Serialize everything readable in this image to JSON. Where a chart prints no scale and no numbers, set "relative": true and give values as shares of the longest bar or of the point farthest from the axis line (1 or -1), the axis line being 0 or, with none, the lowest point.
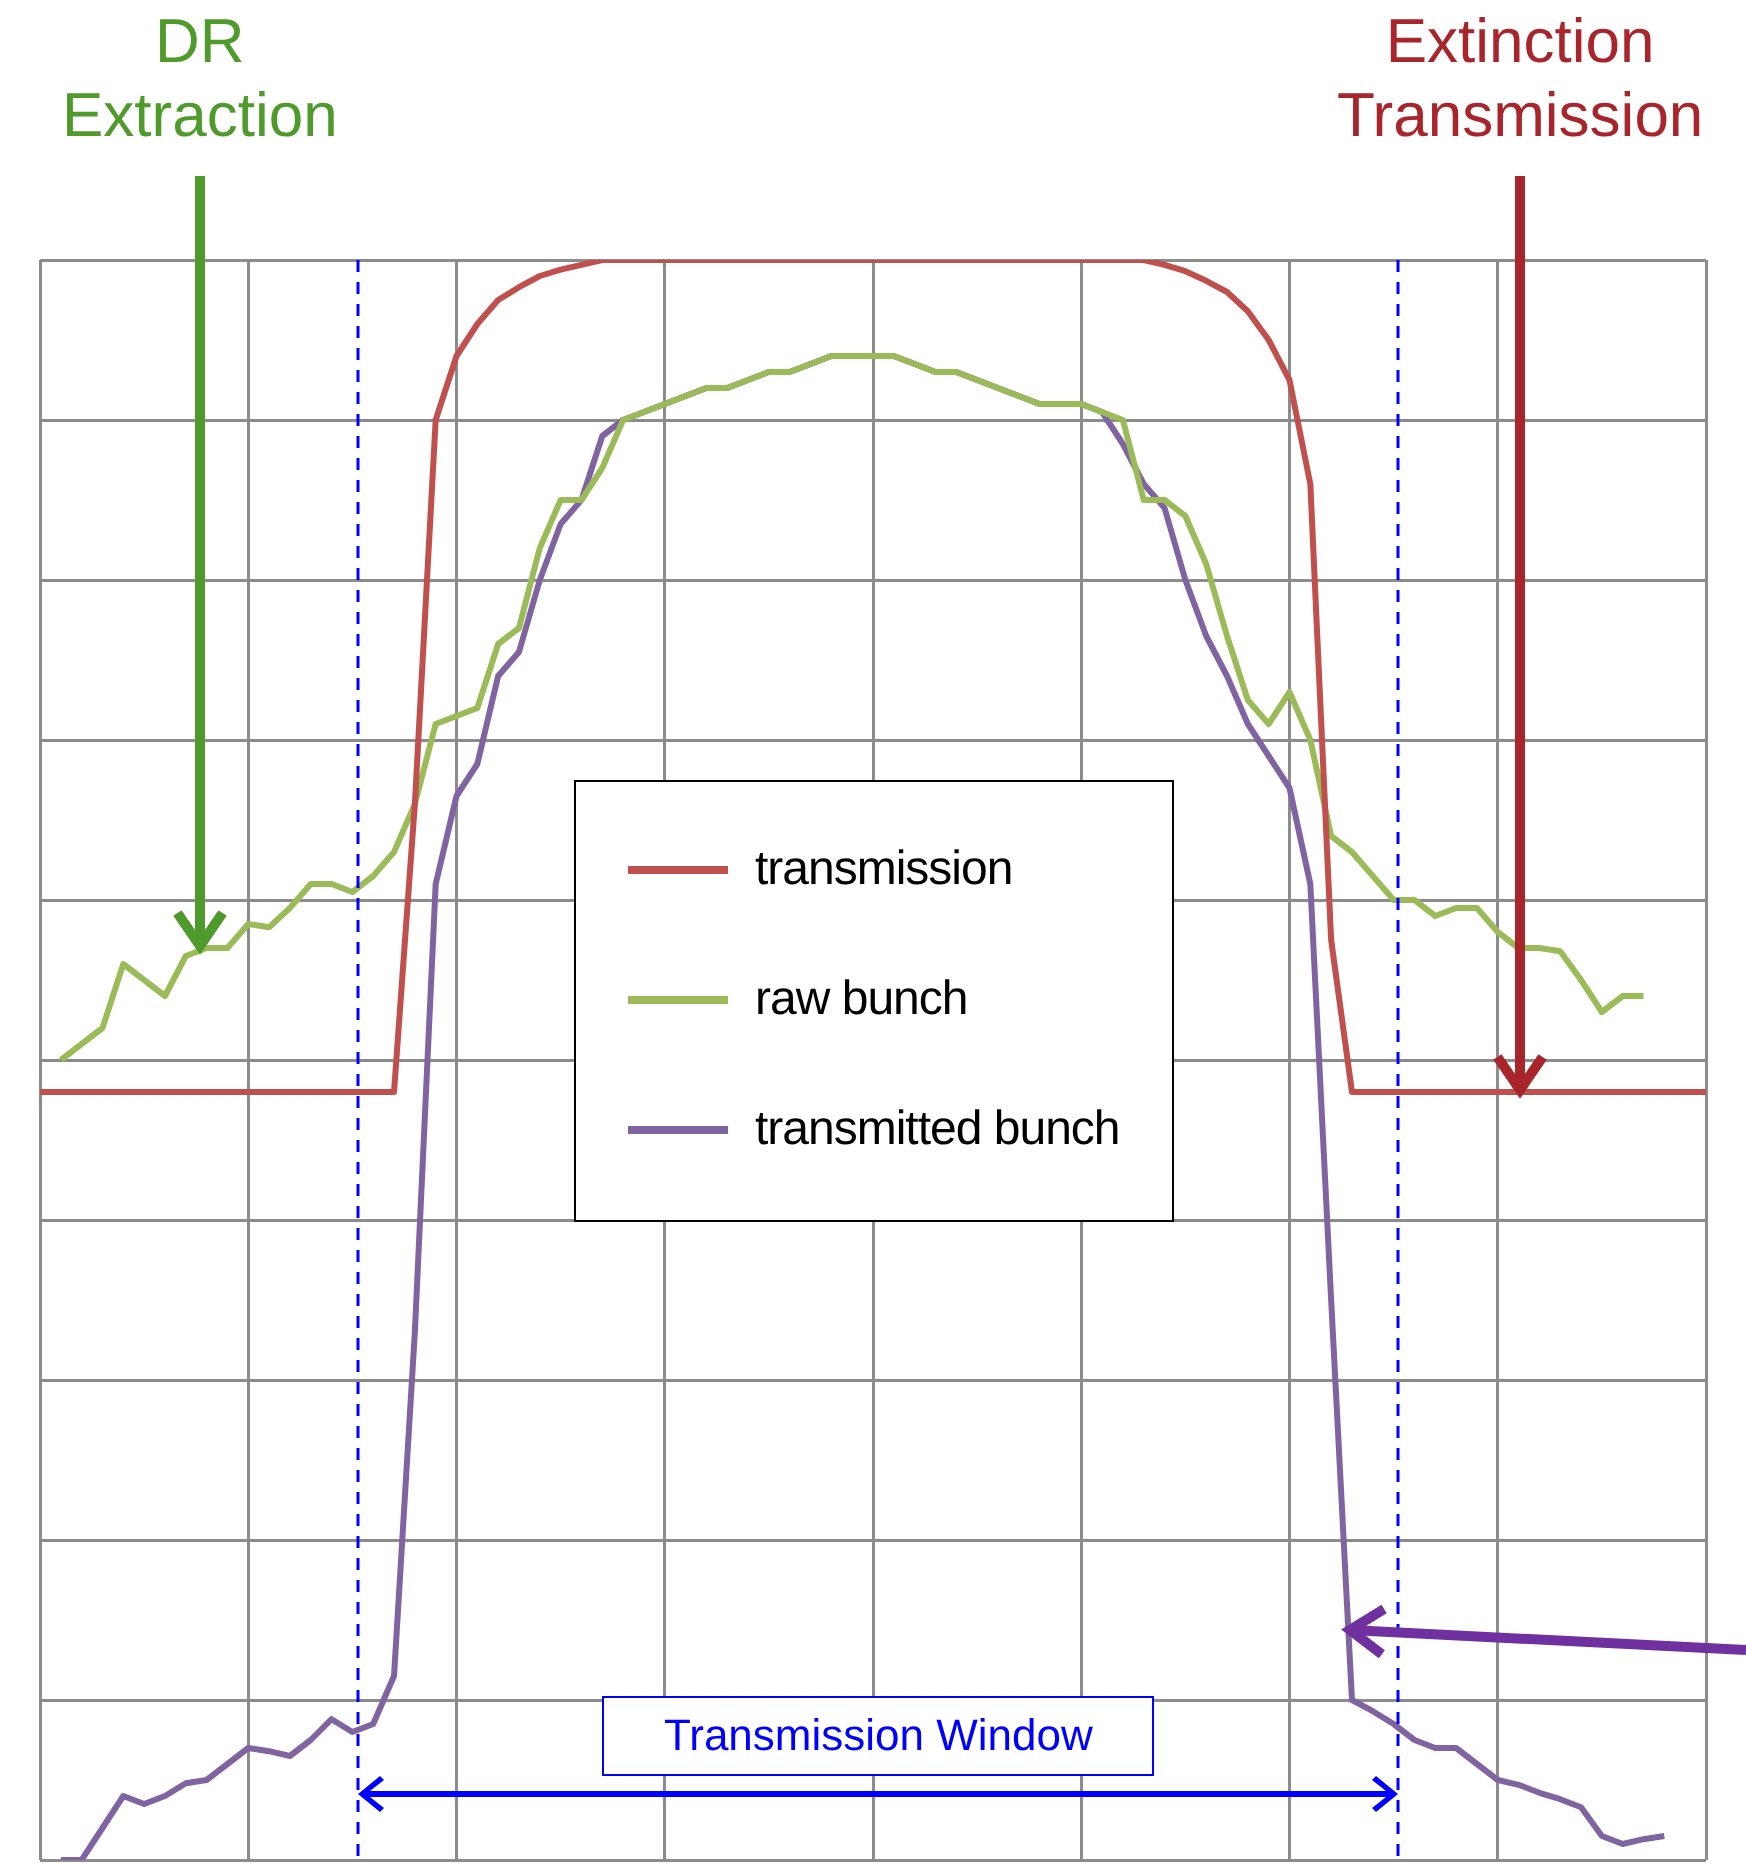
{
  "chart_data": {
    "type": "line",
    "relative": true,
    "grid": true,
    "legend": "center",
    "marker": "none",
    "line_style": "solid",
    "categories": [
      null,
      null,
      null,
      null,
      null,
      null,
      null,
      null,
      null,
      null,
      null,
      null,
      null,
      null,
      null,
      null,
      null,
      null,
      null,
      null,
      null,
      null,
      null,
      null,
      null,
      null,
      null,
      null,
      null,
      null,
      null,
      null,
      null,
      null,
      null,
      null,
      null,
      null,
      null,
      null,
      null,
      null,
      null,
      null,
      null,
      null,
      null,
      null,
      null,
      null,
      null,
      null,
      null,
      null,
      null,
      null,
      null,
      null,
      null,
      null,
      null,
      null,
      null,
      null,
      null,
      null,
      null,
      null,
      null,
      null,
      null,
      null,
      null,
      null,
      null,
      null,
      null,
      null,
      null,
      null,
      null
    ],
    "series": [
      {
        "name": "transmission",
        "color": "#c0504d",
        "values": [
          0.48,
          0.48,
          0.48,
          0.48,
          0.48,
          0.48,
          0.48,
          0.48,
          0.48,
          0.48,
          0.48,
          0.48,
          0.48,
          0.48,
          0.48,
          0.48,
          0.48,
          0.48,
          0.66,
          0.9,
          0.94,
          0.96,
          0.975,
          0.983,
          0.99,
          0.994,
          0.997,
          1,
          1,
          1,
          1,
          1,
          1,
          1,
          1,
          1,
          1,
          1,
          1,
          1,
          1,
          1,
          1,
          1,
          1,
          1,
          1,
          1,
          1,
          1,
          1,
          1,
          1,
          1,
          0.997,
          0.993,
          0.987,
          0.98,
          0.968,
          0.95,
          0.925,
          0.86,
          0.575,
          0.48,
          0.48,
          0.48,
          0.48,
          0.48,
          0.48,
          0.48,
          0.48,
          0.48,
          0.48,
          0.48,
          0.48,
          0.48,
          0.48,
          0.48,
          0.48,
          0.48,
          0.48
        ]
      },
      {
        "name": "raw bunch",
        "color": "#9bbb59",
        "values": [
          null,
          0.5,
          0.51,
          0.52,
          0.56,
          0.55,
          0.54,
          0.565,
          0.57,
          0.57,
          0.585,
          0.583,
          0.595,
          0.61,
          0.61,
          0.605,
          0.615,
          0.63,
          0.66,
          0.71,
          0.715,
          0.72,
          0.76,
          0.77,
          0.82,
          0.85,
          0.85,
          0.87,
          0.9,
          0.905,
          0.91,
          0.915,
          0.92,
          0.92,
          0.925,
          0.93,
          0.93,
          0.935,
          0.94,
          0.94,
          0.94,
          0.94,
          0.935,
          0.93,
          0.93,
          0.925,
          0.92,
          0.915,
          0.91,
          0.91,
          0.91,
          0.905,
          0.9,
          0.85,
          0.85,
          0.84,
          0.81,
          0.765,
          0.725,
          0.71,
          0.73,
          0.7,
          0.64,
          0.63,
          0.615,
          0.6,
          0.6,
          0.59,
          0.595,
          0.595,
          0.58,
          0.57,
          0.57,
          0.568,
          0.55,
          0.53,
          0.54,
          0.54,
          null,
          null,
          null
        ]
      },
      {
        "name": "transmitted bunch",
        "color": "#8064a2",
        "values": [
          null,
          0,
          0,
          0.02,
          0.04,
          0.035,
          0.04,
          0.048,
          0.05,
          0.06,
          0.07,
          0.068,
          0.065,
          0.075,
          0.088,
          0.08,
          0.085,
          0.115,
          0.33,
          0.61,
          0.665,
          0.685,
          0.74,
          0.755,
          0.8,
          0.835,
          0.85,
          0.89,
          0.9,
          0.905,
          0.91,
          0.915,
          0.92,
          0.92,
          0.925,
          0.93,
          0.93,
          0.935,
          0.94,
          0.94,
          0.94,
          0.94,
          0.935,
          0.93,
          0.93,
          0.925,
          0.92,
          0.915,
          0.91,
          0.91,
          0.91,
          0.905,
          0.885,
          0.86,
          0.845,
          0.8,
          0.765,
          0.74,
          0.71,
          0.69,
          0.67,
          0.61,
          0.35,
          0.1,
          0.093,
          0.085,
          0.075,
          0.07,
          0.07,
          0.06,
          0.05,
          0.047,
          0.042,
          0.038,
          0.033,
          0.015,
          0.01,
          0.013,
          0.015,
          null,
          null
        ]
      }
    ],
    "annotations": [
      "DR\nExtraction",
      "Extinction\nTransmission",
      "Transmission Window"
    ]
  }
}
